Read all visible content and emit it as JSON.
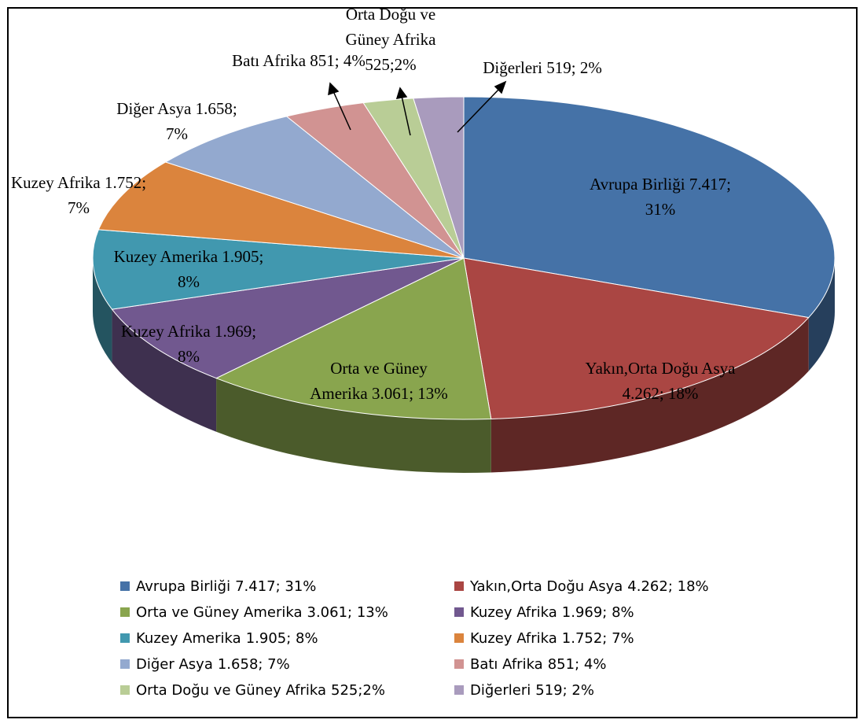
{
  "chart_data": {
    "type": "pie3d",
    "categories": [
      "Avrupa Birliği",
      "Yakın,Orta Doğu Asya",
      "Orta ve Güney Amerika",
      "Kuzey Afrika",
      "Kuzey Amerika",
      "Kuzey Afrika",
      "Diğer Asya",
      "Batı Afrika",
      "Orta Doğu ve Güney Afrika",
      "Diğerleri"
    ],
    "values": [
      7417,
      4262,
      3061,
      1969,
      1905,
      1752,
      1658,
      851,
      525,
      519
    ],
    "value_labels": [
      "7.417; 31%",
      "4.262; 18%",
      "3.061; 13%",
      "1.969; 8%",
      "1.905; 8%",
      "1.752; 7%",
      "1.658; 7%",
      "851; 4%",
      "525;2%",
      "519; 2%"
    ],
    "colors": [
      "#4572a7",
      "#aa4643",
      "#89a54e",
      "#71588f",
      "#4198af",
      "#db843d",
      "#93a9cf",
      "#d19392",
      "#b9cd96",
      "#a99bbd"
    ],
    "legend": "bottom"
  }
}
